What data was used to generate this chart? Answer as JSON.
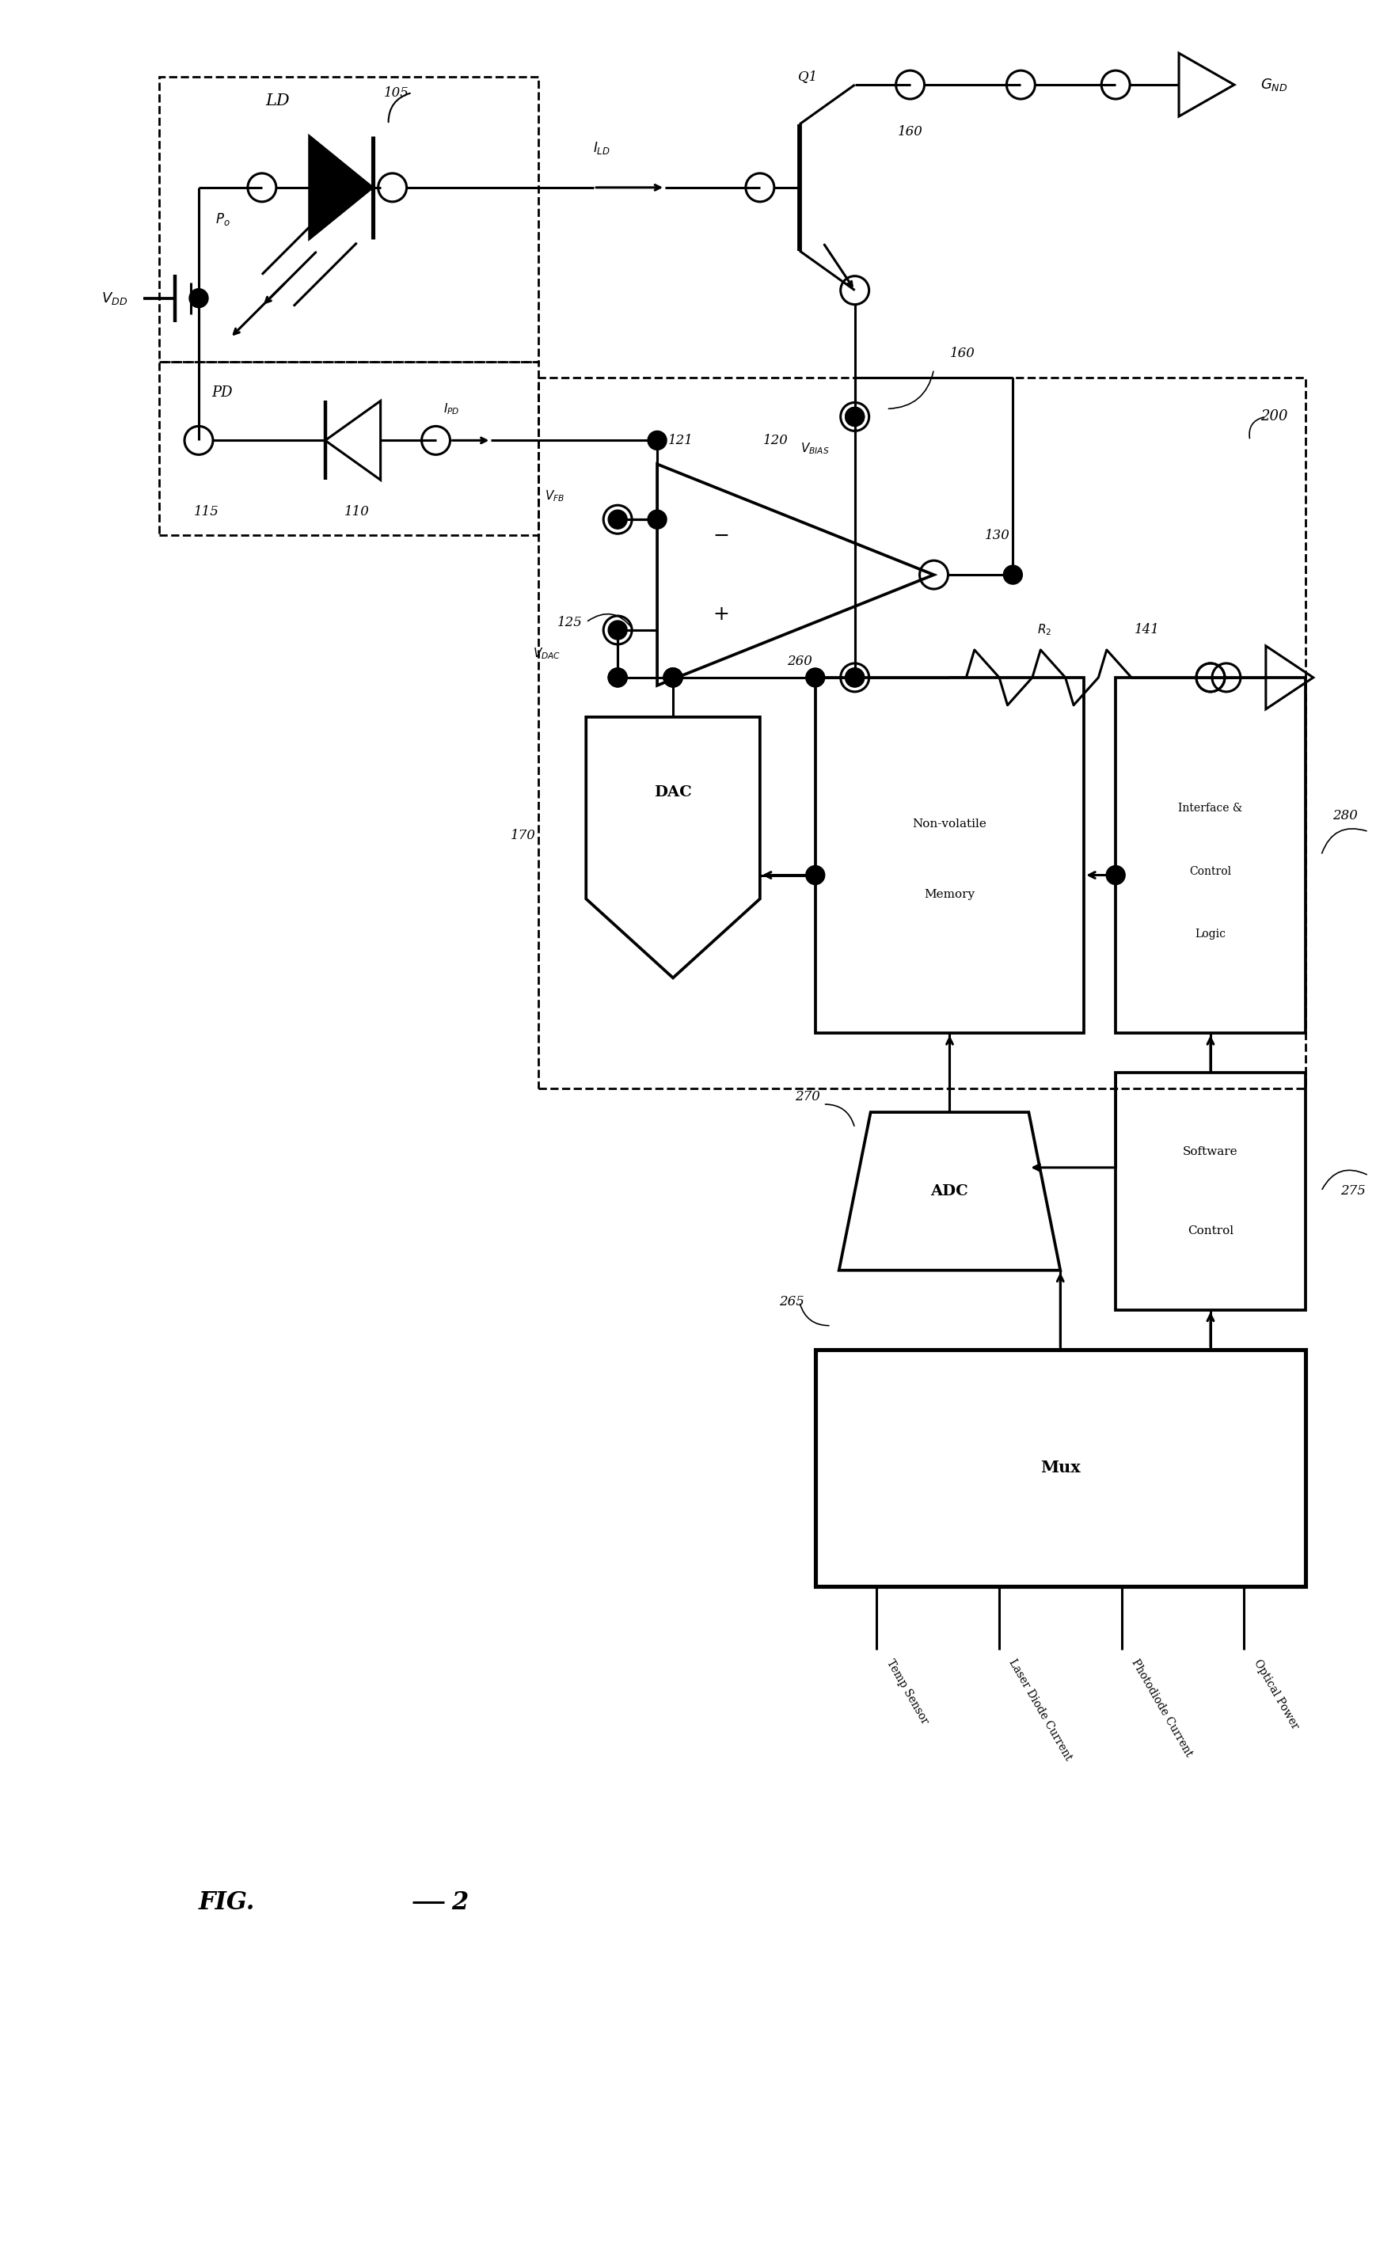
{
  "bg_color": "#ffffff",
  "lw": 2.2,
  "fig_width": 17.62,
  "fig_height": 28.55,
  "bottom_labels": [
    "Temp Sensor",
    "Laser Diode Current",
    "Photodiode Current",
    "Optical Power"
  ]
}
